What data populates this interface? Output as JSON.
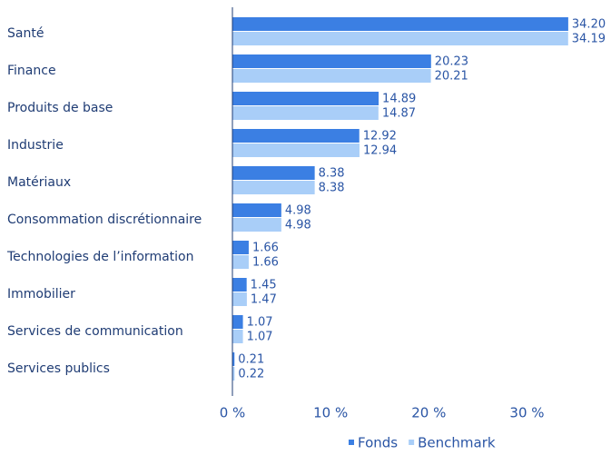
{
  "chart_data": {
    "type": "bar",
    "orientation": "horizontal",
    "categories": [
      "Santé",
      "Finance",
      "Produits de base",
      "Industrie",
      "Matériaux",
      "Consommation discrétionnaire",
      "Technologies de l’information",
      "Immobilier",
      "Services de communication",
      "Services publics"
    ],
    "series": [
      {
        "name": "Fonds",
        "color": "#3b7fe3",
        "values": [
          34.2,
          20.23,
          14.89,
          12.92,
          8.38,
          4.98,
          1.66,
          1.45,
          1.07,
          0.21
        ],
        "value_labels": [
          "34.20",
          "20.23",
          "14.89",
          "12.92",
          "8.38",
          "4.98",
          "1.66",
          "1.45",
          "1.07",
          "0.21"
        ]
      },
      {
        "name": "Benchmark",
        "color": "#a9cef8",
        "values": [
          34.19,
          20.21,
          14.87,
          12.94,
          8.38,
          4.98,
          1.66,
          1.47,
          1.07,
          0.22
        ],
        "value_labels": [
          "34.19",
          "20.21",
          "14.87",
          "12.94",
          "8.38",
          "4.98",
          "1.66",
          "1.47",
          "1.07",
          "0.22"
        ]
      }
    ],
    "xlim": [
      0,
      38
    ],
    "xticks": [
      {
        "value": 0,
        "label": "0 %"
      },
      {
        "value": 10,
        "label": "10 %"
      },
      {
        "value": 20,
        "label": "20 %"
      },
      {
        "value": 30,
        "label": "30 %"
      }
    ],
    "grid": false,
    "legend": "bottom"
  }
}
